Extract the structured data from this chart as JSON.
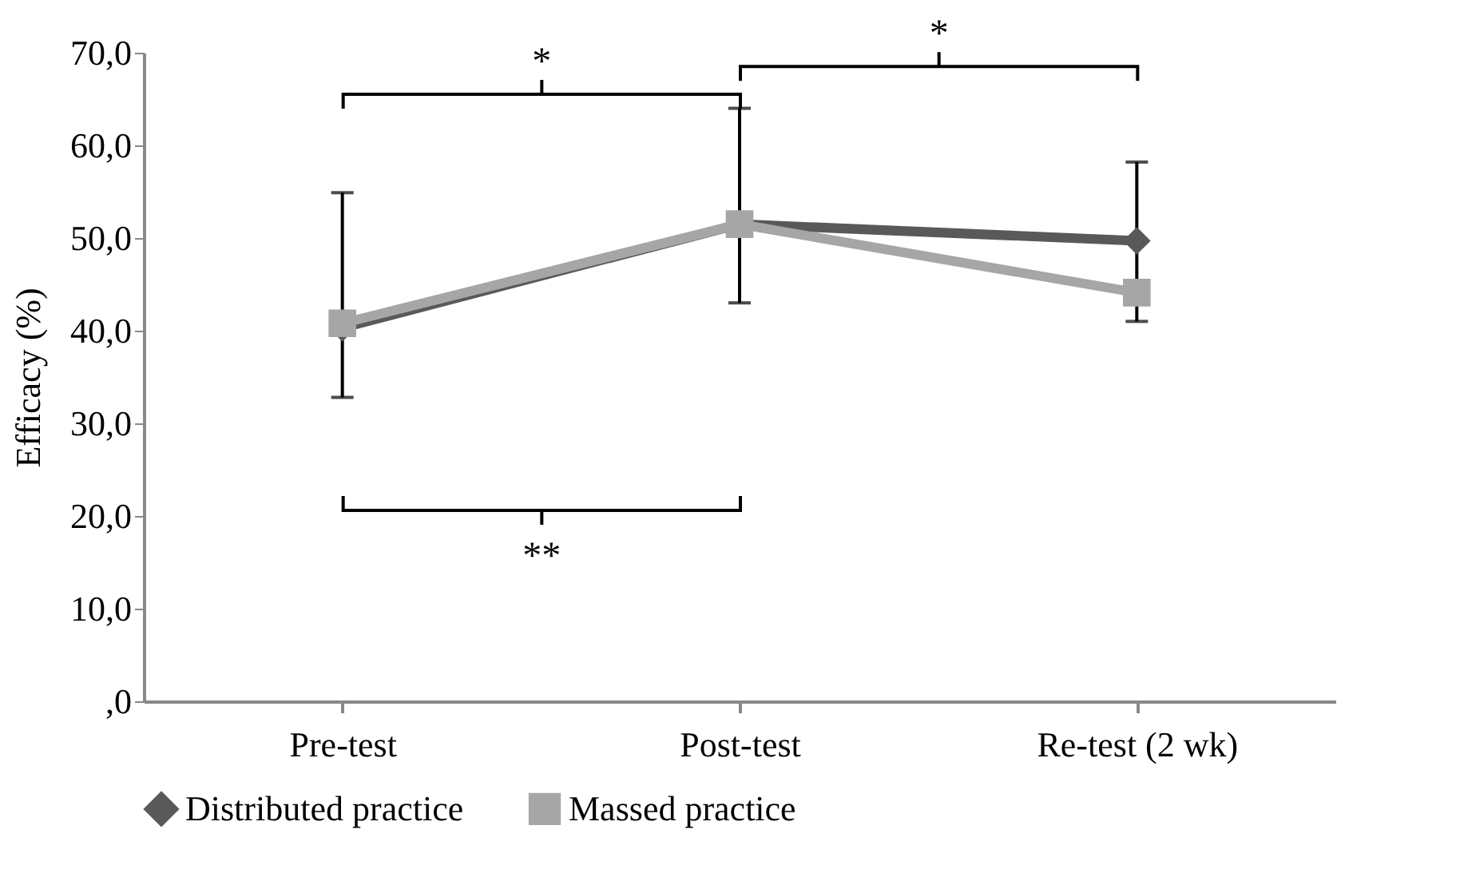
{
  "chart_data": {
    "type": "line",
    "ylabel": "Efficacy  (%)",
    "categories": [
      "Pre-test",
      "Post-test",
      "Re-test (2 wk)"
    ],
    "series": [
      {
        "name": "Distributed practice",
        "color": "#595959",
        "marker": "diamond",
        "values": [
          40.3,
          51.5,
          49.7
        ],
        "errors": [
          [
            32.8,
            54.9
          ],
          [
            43.0,
            64.0
          ],
          [
            41.0,
            58.2
          ]
        ]
      },
      {
        "name": "Massed practice",
        "color": "#a6a6a6",
        "marker": "square",
        "values": [
          40.8,
          51.5,
          44.1
        ]
      }
    ],
    "ylim": [
      0,
      70
    ],
    "yticks": [
      {
        "value": 0,
        "label": ",0"
      },
      {
        "value": 10,
        "label": "10,0"
      },
      {
        "value": 20,
        "label": "20,0"
      },
      {
        "value": 30,
        "label": "30,0"
      },
      {
        "value": 40,
        "label": "40,0"
      },
      {
        "value": 50,
        "label": "50,0"
      },
      {
        "value": 60,
        "label": "60,0"
      },
      {
        "value": 70,
        "label": "70,0"
      }
    ],
    "annotations": [
      "*",
      "*",
      "**"
    ],
    "legend": "bottom",
    "grid": false,
    "line_style": "solid"
  }
}
